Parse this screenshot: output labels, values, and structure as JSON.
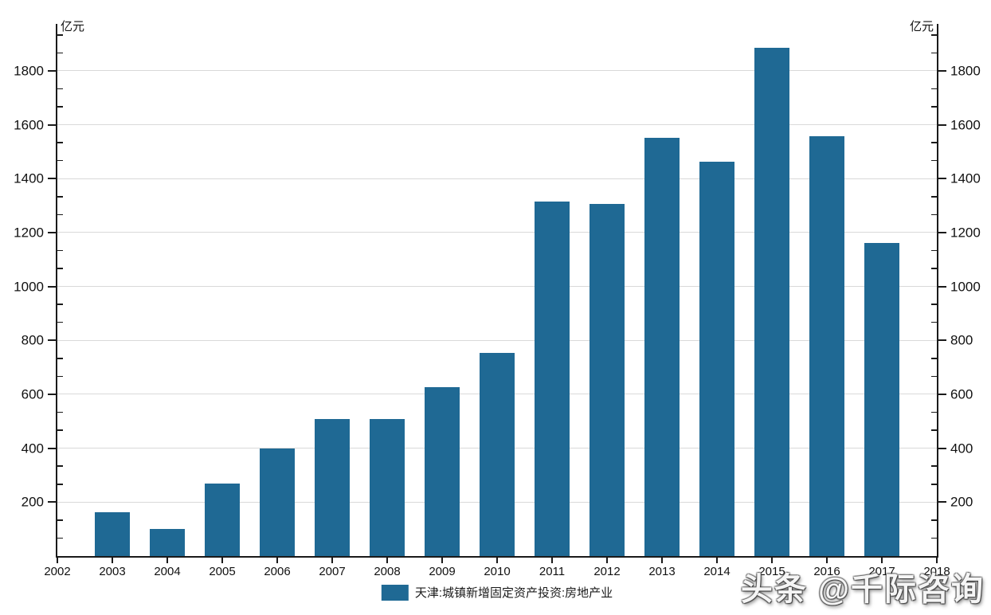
{
  "watermark": {
    "text": "头条 @千际咨询"
  },
  "colors": {
    "bar": "#1f6994",
    "axis": "#1a1a1a",
    "grid": "#d9d9d9",
    "text": "#111111"
  },
  "chart_data": {
    "type": "bar",
    "title": "",
    "y_unit_left": "亿元",
    "y_unit_right": "亿元",
    "legend": [
      {
        "label": "天津:城镇新增固定资产投资:房地产业",
        "color": "#1f6994"
      }
    ],
    "legend_position": "bottom",
    "grid": true,
    "x_axis_tick_labels": [
      "2002",
      "2003",
      "2004",
      "2005",
      "2006",
      "2007",
      "2008",
      "2009",
      "2010",
      "2011",
      "2012",
      "2013",
      "2014",
      "2015",
      "2016",
      "2017",
      "2018"
    ],
    "categories": [
      "2003",
      "2004",
      "2005",
      "2006",
      "2007",
      "2008",
      "2009",
      "2010",
      "2011",
      "2012",
      "2013",
      "2014",
      "2015",
      "2016",
      "2017"
    ],
    "series": [
      {
        "name": "天津:城镇新增固定资产投资:房地产业",
        "color": "#1f6994",
        "values": [
          162,
          100,
          268,
          400,
          509,
          508,
          626,
          753,
          1314,
          1306,
          1550,
          1462,
          1884,
          1557,
          1161
        ]
      }
    ],
    "ylabel": "",
    "xlabel": "",
    "ylim": [
      0,
      1974
    ],
    "y_major_ticks": [
      200,
      400,
      600,
      800,
      1000,
      1200,
      1400,
      1600,
      1800
    ],
    "y_minor_tick_step": 66.667,
    "dual_y_axis": true
  }
}
